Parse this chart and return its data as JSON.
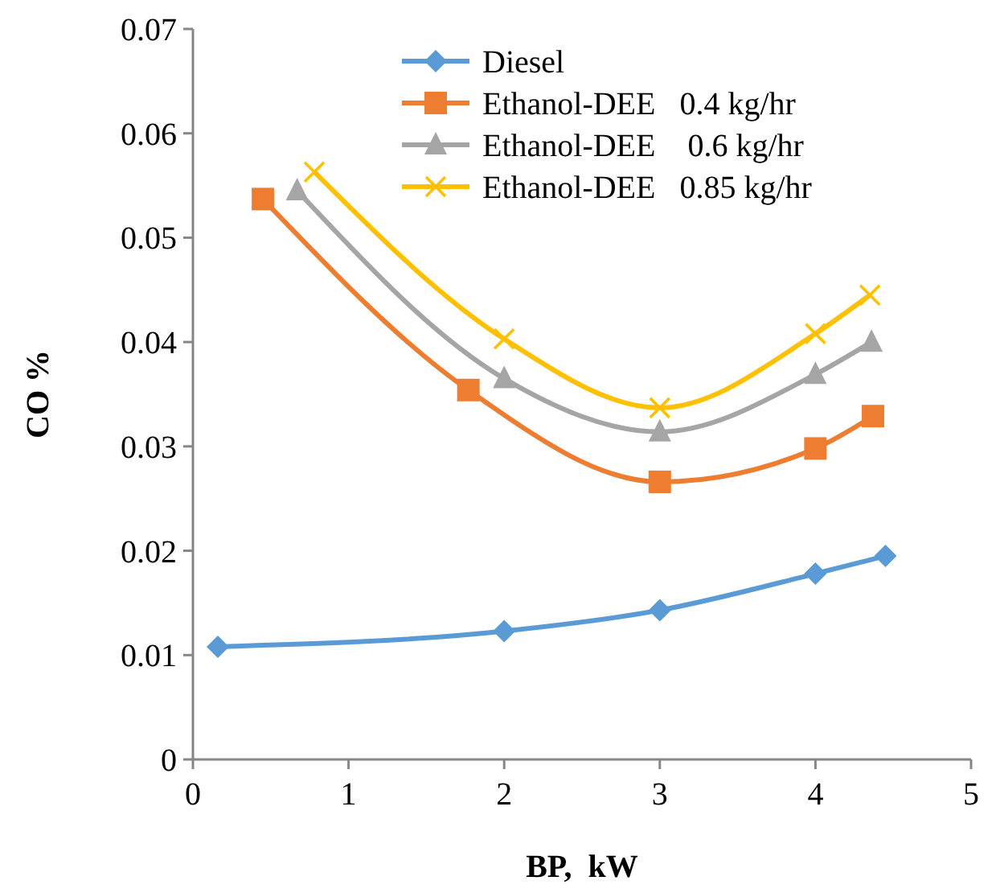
{
  "chart_data": {
    "type": "line",
    "xlabel": "BP,  kW",
    "ylabel": "CO %",
    "xlim": [
      0,
      5
    ],
    "xticks": [
      0,
      1,
      2,
      3,
      4,
      5
    ],
    "ylim": [
      0,
      0.07
    ],
    "yticks": [
      0,
      0.01,
      0.02,
      0.03,
      0.04,
      0.05,
      0.06,
      0.07
    ],
    "grid": false,
    "legend": "top right",
    "line_style": "solid",
    "series": [
      {
        "name": "Diesel",
        "color": "#5b9bd5",
        "marker": "diamond",
        "x": [
          0.16,
          2.0,
          3.0,
          4.0,
          4.45
        ],
        "values": [
          0.0108,
          0.0123,
          0.0143,
          0.0178,
          0.0195
        ]
      },
      {
        "name": "Ethanol-DEE   0.4 kg/hr",
        "color": "#ed7d31",
        "marker": "square",
        "x": [
          0.45,
          1.77,
          3.0,
          4.0,
          4.37
        ],
        "values": [
          0.0537,
          0.0354,
          0.0266,
          0.0298,
          0.0329
        ]
      },
      {
        "name": "Ethanol-DEE    0.6 kg/hr",
        "color": "#a5a5a5",
        "marker": "triangle",
        "x": [
          0.67,
          2.0,
          3.0,
          4.0,
          4.36
        ],
        "values": [
          0.0545,
          0.0365,
          0.0314,
          0.0369,
          0.04
        ]
      },
      {
        "name": "Ethanol-DEE   0.85 kg/hr",
        "color": "#ffc000",
        "marker": "cross",
        "x": [
          0.78,
          2.0,
          3.0,
          4.0,
          4.35
        ],
        "values": [
          0.0563,
          0.0403,
          0.0337,
          0.0408,
          0.0445
        ]
      }
    ]
  }
}
